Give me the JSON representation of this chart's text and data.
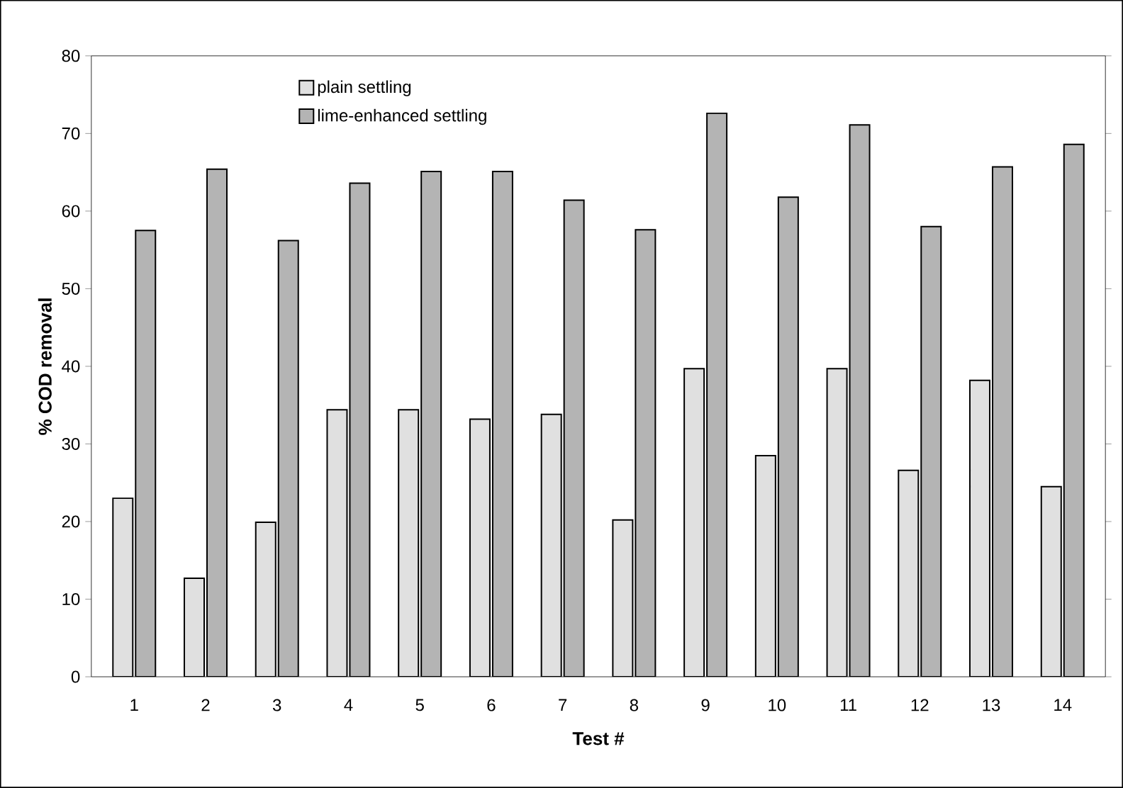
{
  "chart_data": {
    "type": "bar",
    "xlabel": "Test #",
    "ylabel": "% COD removal",
    "categories": [
      "1",
      "2",
      "3",
      "4",
      "5",
      "6",
      "7",
      "8",
      "9",
      "10",
      "11",
      "12",
      "13",
      "14"
    ],
    "series": [
      {
        "name": "plain settling",
        "color": "#e0e0e0",
        "values": [
          23,
          12.7,
          19.9,
          34.4,
          34.4,
          33.2,
          33.8,
          20.2,
          39.7,
          28.5,
          39.7,
          26.6,
          38.2,
          24.5
        ]
      },
      {
        "name": "lime-enhanced settling",
        "color": "#b4b4b4",
        "values": [
          57.5,
          65.4,
          56.2,
          63.6,
          65.1,
          65.1,
          61.4,
          57.6,
          72.6,
          61.8,
          71.1,
          58,
          65.7,
          68.6
        ]
      }
    ],
    "ylim": [
      0,
      80
    ],
    "yticks": [
      0,
      10,
      20,
      30,
      40,
      50,
      60,
      70,
      80
    ],
    "grid": false,
    "legend": "top left"
  }
}
